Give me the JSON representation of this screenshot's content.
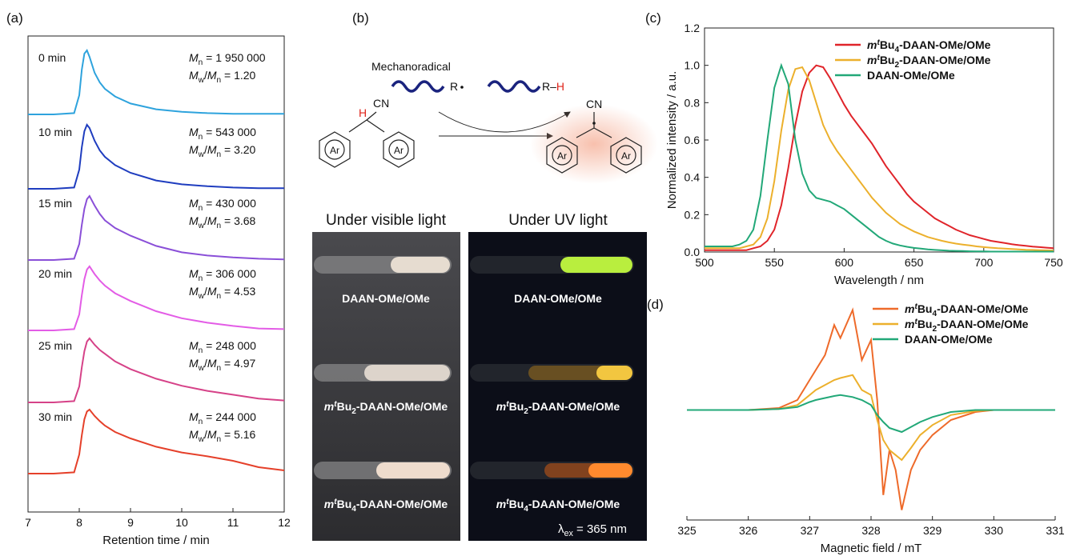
{
  "chart_data": [
    {
      "type": "line",
      "panel_label": "(a)",
      "xlabel": "Retention time / min",
      "x": [
        7,
        7.5,
        7.9,
        8.0,
        8.05,
        8.1,
        8.15,
        8.2,
        8.3,
        8.4,
        8.5,
        8.7,
        9,
        9.5,
        10,
        10.5,
        11,
        11.5,
        12
      ],
      "xlim": [
        7,
        12
      ],
      "xticks": [
        7,
        8,
        9,
        10,
        11,
        12
      ],
      "ylim": [
        0,
        1
      ],
      "stacked_offsets": true,
      "annotation_template": {
        "mn": [
          {
            "text": "M",
            "style": "italic"
          },
          {
            "text": "n",
            "style": "sub"
          },
          {
            "text": " = "
          }
        ],
        "dispersity": [
          {
            "text": "M",
            "style": "italic"
          },
          {
            "text": "w",
            "style": "sub"
          },
          {
            "text": "/"
          },
          {
            "text": "M",
            "style": "italic"
          },
          {
            "text": "n",
            "style": "sub"
          },
          {
            "text": " = "
          }
        ]
      },
      "series": [
        {
          "name": "0 min",
          "color": "#2ea3dd",
          "annotation": {
            "mn": "1 950 000",
            "dispersity": "1.20"
          },
          "values": [
            0,
            0,
            0.02,
            0.3,
            0.7,
            0.95,
            1,
            0.9,
            0.65,
            0.5,
            0.4,
            0.28,
            0.17,
            0.08,
            0.04,
            0.02,
            0.01,
            0.01,
            0.01
          ]
        },
        {
          "name": "10 min",
          "color": "#1f3dbf",
          "annotation": {
            "mn": "543 000",
            "dispersity": "3.20"
          },
          "values": [
            0,
            0,
            0.02,
            0.3,
            0.65,
            0.9,
            1,
            0.95,
            0.75,
            0.6,
            0.5,
            0.37,
            0.25,
            0.13,
            0.07,
            0.04,
            0.02,
            0.01,
            0.01
          ]
        },
        {
          "name": "15 min",
          "color": "#8a4fd8",
          "annotation": {
            "mn": "430 000",
            "dispersity": "3.68"
          },
          "values": [
            0,
            0,
            0.02,
            0.25,
            0.55,
            0.8,
            0.95,
            1,
            0.85,
            0.72,
            0.62,
            0.5,
            0.38,
            0.22,
            0.12,
            0.07,
            0.04,
            0.02,
            0.01
          ]
        },
        {
          "name": "20 min",
          "color": "#e35ce6",
          "annotation": {
            "mn": "306 000",
            "dispersity": "4.53"
          },
          "values": [
            0,
            0,
            0.02,
            0.25,
            0.55,
            0.8,
            0.95,
            1,
            0.88,
            0.78,
            0.7,
            0.58,
            0.46,
            0.3,
            0.19,
            0.12,
            0.07,
            0.03,
            0.02
          ]
        },
        {
          "name": "25 min",
          "color": "#d64288",
          "annotation": {
            "mn": "248 000",
            "dispersity": "4.97"
          },
          "values": [
            0,
            0,
            0.02,
            0.25,
            0.55,
            0.8,
            0.95,
            1,
            0.9,
            0.82,
            0.76,
            0.64,
            0.52,
            0.37,
            0.26,
            0.18,
            0.12,
            0.06,
            0.03
          ]
        },
        {
          "name": "30 min",
          "color": "#e5402a",
          "annotation": {
            "mn": "244 000",
            "dispersity": "5.16"
          },
          "values": [
            0,
            0,
            0.02,
            0.3,
            0.6,
            0.85,
            0.97,
            1,
            0.9,
            0.82,
            0.75,
            0.65,
            0.55,
            0.42,
            0.33,
            0.27,
            0.2,
            0.1,
            0.05
          ]
        }
      ]
    },
    {
      "type": "line",
      "panel_label": "(c)",
      "xlabel": "Wavelength / nm",
      "ylabel": "Normalized intensity / a.u.",
      "x": [
        500,
        505,
        510,
        515,
        520,
        525,
        530,
        535,
        540,
        545,
        550,
        555,
        560,
        565,
        570,
        575,
        580,
        585,
        590,
        595,
        600,
        605,
        610,
        615,
        620,
        625,
        630,
        635,
        640,
        645,
        650,
        655,
        660,
        665,
        670,
        675,
        680,
        685,
        690,
        695,
        700,
        705,
        710,
        715,
        720,
        725,
        730,
        735,
        740,
        745,
        750
      ],
      "xlim": [
        500,
        750
      ],
      "xticks": [
        500,
        550,
        600,
        650,
        700,
        750
      ],
      "ylim": [
        0,
        1.2
      ],
      "yticks": [
        {
          "value": 0,
          "label": "0.0"
        },
        0.2,
        0.4,
        0.6,
        0.8,
        {
          "value": 1,
          "label": "1.0"
        },
        1.2
      ],
      "legend": "top-right",
      "series": [
        {
          "name": [
            {
              "text": "m",
              "style": "italic"
            },
            {
              "text": "t",
              "style": "italic-sup"
            },
            {
              "text": "Bu"
            },
            {
              "text": "4",
              "style": "sub"
            },
            {
              "text": "-DAAN-OMe/OMe"
            }
          ],
          "color": "#e0242a",
          "values": [
            0.01,
            0.01,
            0.01,
            0.01,
            0.01,
            0.01,
            0.01,
            0.02,
            0.03,
            0.06,
            0.12,
            0.25,
            0.45,
            0.68,
            0.86,
            0.96,
            1.0,
            0.99,
            0.93,
            0.86,
            0.79,
            0.73,
            0.68,
            0.63,
            0.58,
            0.52,
            0.46,
            0.41,
            0.36,
            0.31,
            0.27,
            0.24,
            0.21,
            0.18,
            0.16,
            0.14,
            0.12,
            0.105,
            0.09,
            0.08,
            0.07,
            0.06,
            0.054,
            0.048,
            0.042,
            0.037,
            0.033,
            0.029,
            0.026,
            0.023,
            0.02
          ]
        },
        {
          "name": [
            {
              "text": "m",
              "style": "italic"
            },
            {
              "text": "t",
              "style": "italic-sup"
            },
            {
              "text": "Bu"
            },
            {
              "text": "2",
              "style": "sub"
            },
            {
              "text": "-DAAN-OMe/OMe"
            }
          ],
          "color": "#ecb02c",
          "values": [
            0.02,
            0.02,
            0.02,
            0.02,
            0.02,
            0.02,
            0.03,
            0.04,
            0.08,
            0.18,
            0.38,
            0.65,
            0.87,
            0.98,
            0.99,
            0.92,
            0.8,
            0.68,
            0.6,
            0.54,
            0.49,
            0.44,
            0.39,
            0.34,
            0.29,
            0.25,
            0.21,
            0.18,
            0.15,
            0.13,
            0.11,
            0.095,
            0.08,
            0.07,
            0.06,
            0.052,
            0.045,
            0.04,
            0.035,
            0.03,
            0.026,
            0.023,
            0.02,
            0.018,
            0.016,
            0.014,
            0.012,
            0.011,
            0.01,
            0.009,
            0.008
          ]
        },
        {
          "name": [
            {
              "text": "DAAN-OMe/OMe"
            }
          ],
          "color": "#22a878",
          "values": [
            0.03,
            0.03,
            0.03,
            0.03,
            0.03,
            0.04,
            0.06,
            0.12,
            0.3,
            0.6,
            0.88,
            1.0,
            0.9,
            0.6,
            0.42,
            0.33,
            0.29,
            0.28,
            0.27,
            0.25,
            0.23,
            0.2,
            0.17,
            0.14,
            0.11,
            0.08,
            0.06,
            0.045,
            0.035,
            0.028,
            0.022,
            0.018,
            0.014,
            0.011,
            0.009,
            0.007,
            0.006,
            0.005,
            0.004,
            0.003,
            0.003,
            0.002,
            0.002,
            0.002,
            0.002,
            0.002,
            0.002,
            0.002,
            0.002,
            0.002,
            0.002
          ]
        }
      ]
    },
    {
      "type": "line",
      "panel_label": "(d)",
      "xlabel": "Magnetic field / mT",
      "x": [
        325,
        326,
        326.5,
        326.8,
        327,
        327.1,
        327.25,
        327.4,
        327.5,
        327.7,
        327.85,
        328,
        328.1,
        328.2,
        328.3,
        328.4,
        328.5,
        328.65,
        328.8,
        329,
        329.3,
        329.7,
        330,
        331
      ],
      "xlim": [
        325,
        331
      ],
      "xticks": [
        325,
        326,
        327,
        328,
        329,
        330,
        331
      ],
      "ylim": [
        -1.1,
        1.1
      ],
      "legend": "top-right",
      "series": [
        {
          "name": [
            {
              "text": "m",
              "style": "italic"
            },
            {
              "text": "t",
              "style": "italic-sup"
            },
            {
              "text": "Bu"
            },
            {
              "text": "4",
              "style": "sub"
            },
            {
              "text": "-DAAN-OMe/OMe"
            }
          ],
          "color": "#ee6a2a",
          "values": [
            0,
            0,
            0.02,
            0.1,
            0.3,
            0.4,
            0.55,
            0.85,
            0.72,
            1.0,
            0.5,
            0.7,
            0.1,
            -0.85,
            -0.4,
            -0.6,
            -1.0,
            -0.6,
            -0.4,
            -0.25,
            -0.1,
            -0.02,
            0,
            0
          ]
        },
        {
          "name": [
            {
              "text": "m",
              "style": "italic"
            },
            {
              "text": "t",
              "style": "italic-sup"
            },
            {
              "text": "Bu"
            },
            {
              "text": "2",
              "style": "sub"
            },
            {
              "text": "-DAAN-OMe/OMe"
            }
          ],
          "color": "#ecb02c",
          "values": [
            0,
            0,
            0.01,
            0.05,
            0.15,
            0.2,
            0.25,
            0.3,
            0.32,
            0.35,
            0.2,
            0.15,
            -0.1,
            -0.3,
            -0.4,
            -0.45,
            -0.5,
            -0.38,
            -0.25,
            -0.15,
            -0.05,
            -0.01,
            0,
            0
          ]
        },
        {
          "name": [
            {
              "text": "DAAN-OMe/OMe"
            }
          ],
          "color": "#22a878",
          "values": [
            0,
            0,
            0.01,
            0.03,
            0.08,
            0.1,
            0.12,
            0.14,
            0.15,
            0.13,
            0.1,
            0.05,
            -0.05,
            -0.12,
            -0.18,
            -0.2,
            -0.22,
            -0.17,
            -0.12,
            -0.07,
            -0.02,
            0,
            0,
            0
          ]
        }
      ]
    }
  ],
  "scheme": {
    "panel_label": "(b)",
    "mechanoradical": "Mechanoradical",
    "radical": "R",
    "product": [
      {
        "text": "R–"
      },
      {
        "text": "H",
        "style": "red"
      }
    ],
    "hydrogen": "H",
    "cyano": "CN",
    "aryl": "Ar"
  },
  "photos": {
    "headings": [
      "Under visible light",
      "Under UV light"
    ],
    "samples": [
      [
        {
          "text": "DAAN-OMe/OMe"
        }
      ],
      [
        {
          "text": "m",
          "style": "italic"
        },
        {
          "text": "t",
          "style": "italic-sup"
        },
        {
          "text": "Bu"
        },
        {
          "text": "2",
          "style": "sub"
        },
        {
          "text": "-DAAN-OMe/OMe"
        }
      ],
      [
        {
          "text": "m",
          "style": "italic"
        },
        {
          "text": "t",
          "style": "italic-sup"
        },
        {
          "text": "Bu"
        },
        {
          "text": "4",
          "style": "sub"
        },
        {
          "text": "-DAAN-OMe/OMe"
        }
      ]
    ],
    "excitation": [
      {
        "text": "λ"
      },
      {
        "text": "ex",
        "style": "sub"
      },
      {
        "text": " = 365 nm"
      }
    ]
  }
}
